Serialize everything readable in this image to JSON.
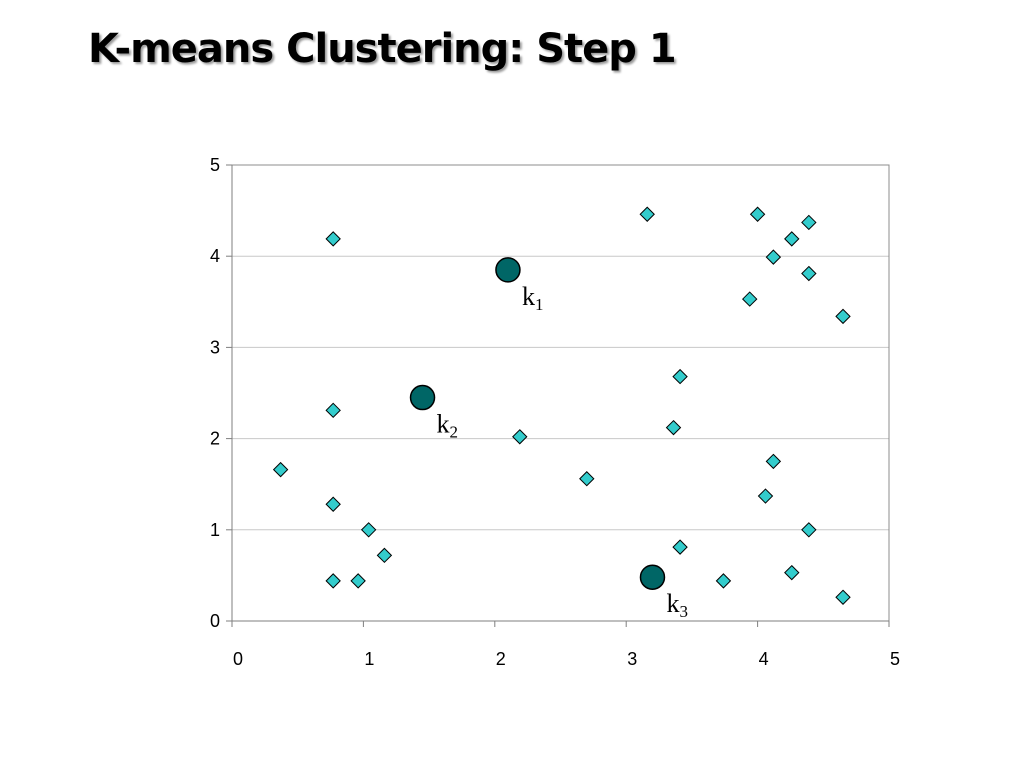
{
  "slide": {
    "title": "K-means Clustering: Step 1"
  },
  "chart_data": {
    "type": "scatter",
    "title": "K-means Clustering: Step 1",
    "xlabel": "",
    "ylabel": "",
    "xlim": [
      0,
      5
    ],
    "ylim": [
      0,
      5
    ],
    "x_ticks": [
      0,
      1,
      2,
      3,
      4,
      5
    ],
    "y_ticks": [
      0,
      1,
      2,
      3,
      4,
      5
    ],
    "grid": "horizontal",
    "legend": "none",
    "series": [
      {
        "marker": "diamond",
        "color": "#33CCCC",
        "points": [
          [
            0.37,
            1.66
          ],
          [
            0.77,
            4.19
          ],
          [
            0.77,
            2.31
          ],
          [
            0.77,
            1.28
          ],
          [
            0.77,
            0.44
          ],
          [
            0.96,
            0.44
          ],
          [
            1.04,
            1.0
          ],
          [
            1.16,
            0.72
          ],
          [
            2.19,
            2.02
          ],
          [
            2.7,
            1.56
          ],
          [
            3.16,
            4.46
          ],
          [
            3.36,
            2.12
          ],
          [
            3.41,
            2.68
          ],
          [
            3.41,
            0.81
          ],
          [
            3.74,
            0.44
          ],
          [
            3.94,
            3.53
          ],
          [
            4.0,
            4.46
          ],
          [
            4.06,
            1.37
          ],
          [
            4.12,
            3.99
          ],
          [
            4.12,
            1.75
          ],
          [
            4.26,
            4.19
          ],
          [
            4.26,
            0.53
          ],
          [
            4.39,
            4.37
          ],
          [
            4.39,
            3.81
          ],
          [
            4.39,
            1.0
          ],
          [
            4.65,
            3.34
          ],
          [
            4.65,
            0.26
          ]
        ]
      },
      {
        "marker": "circle",
        "color": "#006666",
        "points": [
          [
            2.1,
            3.85
          ],
          [
            1.45,
            2.45
          ],
          [
            3.2,
            0.48
          ]
        ],
        "labels": [
          {
            "base": "k",
            "sub": "1"
          },
          {
            "base": "k",
            "sub": "2"
          },
          {
            "base": "k",
            "sub": "3"
          }
        ]
      }
    ]
  }
}
